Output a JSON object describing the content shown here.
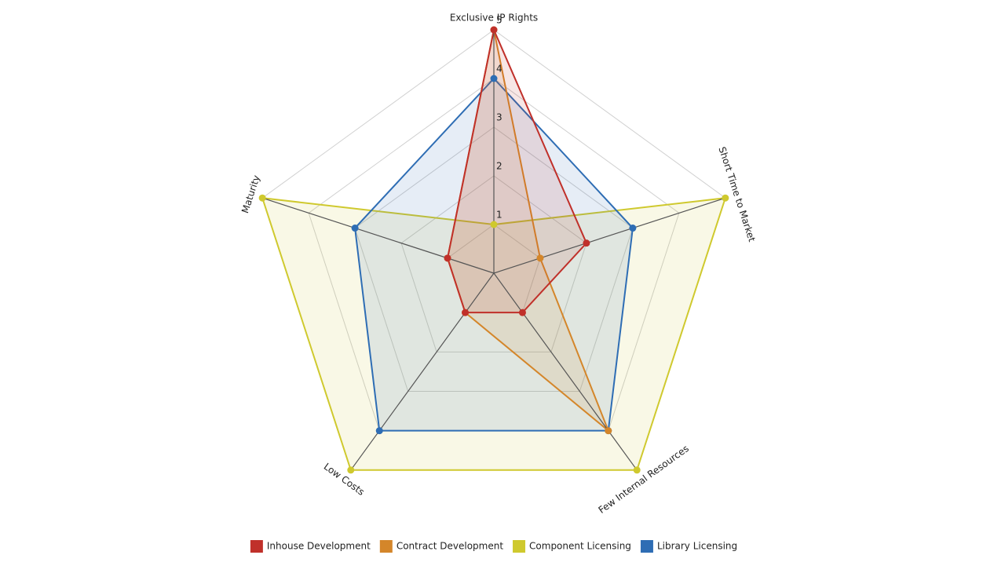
{
  "chart_data": {
    "type": "radar",
    "categories": [
      "Exclusive IP Rights",
      "Short Time to Market",
      "Few Internal Resources",
      "Low Costs",
      "Maturity"
    ],
    "rlim": [
      0,
      5
    ],
    "rticks": [
      1,
      2,
      3,
      4,
      5
    ],
    "grid": true,
    "legend": "bottom",
    "series": [
      {
        "name": "Inhouse Development",
        "color": "#c0302a",
        "values": [
          5,
          2,
          1,
          1,
          1
        ]
      },
      {
        "name": "Contract Development",
        "color": "#d4862a",
        "values": [
          5,
          1,
          4,
          1,
          1
        ]
      },
      {
        "name": "Component Licensing",
        "color": "#cfc92e",
        "values": [
          1,
          5,
          5,
          5,
          5
        ]
      },
      {
        "name": "Library Licensing",
        "color": "#2e6db4",
        "values": [
          4,
          3,
          4,
          4,
          3
        ]
      }
    ]
  }
}
